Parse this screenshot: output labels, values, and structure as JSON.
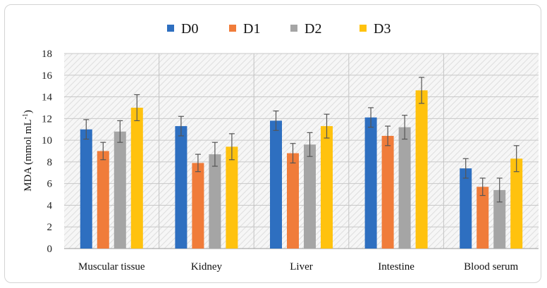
{
  "chart_data": {
    "type": "bar",
    "categories": [
      "Muscular tissue",
      "Kidney",
      "Liver",
      "Intestine",
      "Blood serum"
    ],
    "series": [
      {
        "name": "D0",
        "color": "#2e6fc0",
        "values": [
          11.0,
          11.3,
          11.8,
          12.1,
          7.4
        ],
        "errors": [
          0.9,
          0.9,
          0.9,
          0.9,
          0.9
        ]
      },
      {
        "name": "D1",
        "color": "#f07c3a",
        "values": [
          9.0,
          7.9,
          8.8,
          10.4,
          5.7
        ],
        "errors": [
          0.8,
          0.8,
          0.9,
          0.9,
          0.8
        ]
      },
      {
        "name": "D2",
        "color": "#a5a5a5",
        "values": [
          10.8,
          8.7,
          9.6,
          11.2,
          5.4
        ],
        "errors": [
          1.0,
          1.1,
          1.1,
          1.1,
          1.1
        ]
      },
      {
        "name": "D3",
        "color": "#ffc20e",
        "values": [
          13.0,
          9.4,
          11.3,
          14.6,
          8.3
        ],
        "errors": [
          1.2,
          1.2,
          1.1,
          1.2,
          1.2
        ]
      }
    ],
    "ylabel": "MDA (mmol mL",
    "ylabel_sup": "-1",
    "ylabel_close": ")",
    "ylim": [
      0,
      18
    ],
    "yticks": [
      0,
      2,
      4,
      6,
      8,
      10,
      12,
      14,
      16,
      18
    ],
    "grid": true,
    "legend": "top"
  }
}
